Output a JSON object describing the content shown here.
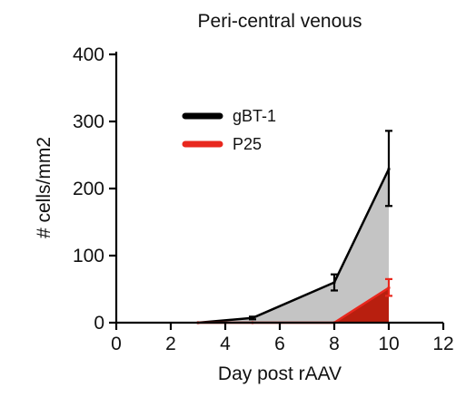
{
  "chart_data": {
    "type": "area",
    "title": "Peri-central venous",
    "xlabel": "Day post rAAV",
    "ylabel": "# cells/mm2",
    "xlim": [
      0,
      12
    ],
    "ylim": [
      0,
      400
    ],
    "xticks": [
      0,
      2,
      4,
      6,
      8,
      10,
      12
    ],
    "yticks": [
      0,
      100,
      200,
      300,
      400
    ],
    "grid": false,
    "legend_position": "upper-left",
    "series": [
      {
        "name": "gBT-1",
        "line_color": "#000000",
        "fill_color": "#c4c4c4",
        "x": [
          3,
          5,
          8,
          10
        ],
        "y": [
          0,
          7,
          60,
          229
        ],
        "err_x": [
          5,
          8,
          10
        ],
        "err_y": [
          7,
          60,
          229
        ],
        "err_lo": [
          2,
          12,
          55
        ],
        "err_hi": [
          2,
          12,
          57
        ]
      },
      {
        "name": "P25",
        "line_color": "#e8281e",
        "fill_color": "#b81f0f",
        "x": [
          3,
          5,
          8,
          10
        ],
        "y": [
          0,
          0,
          0,
          52
        ],
        "err_x": [
          10
        ],
        "err_y": [
          52
        ],
        "err_lo": [
          12
        ],
        "err_hi": [
          13
        ]
      }
    ]
  }
}
